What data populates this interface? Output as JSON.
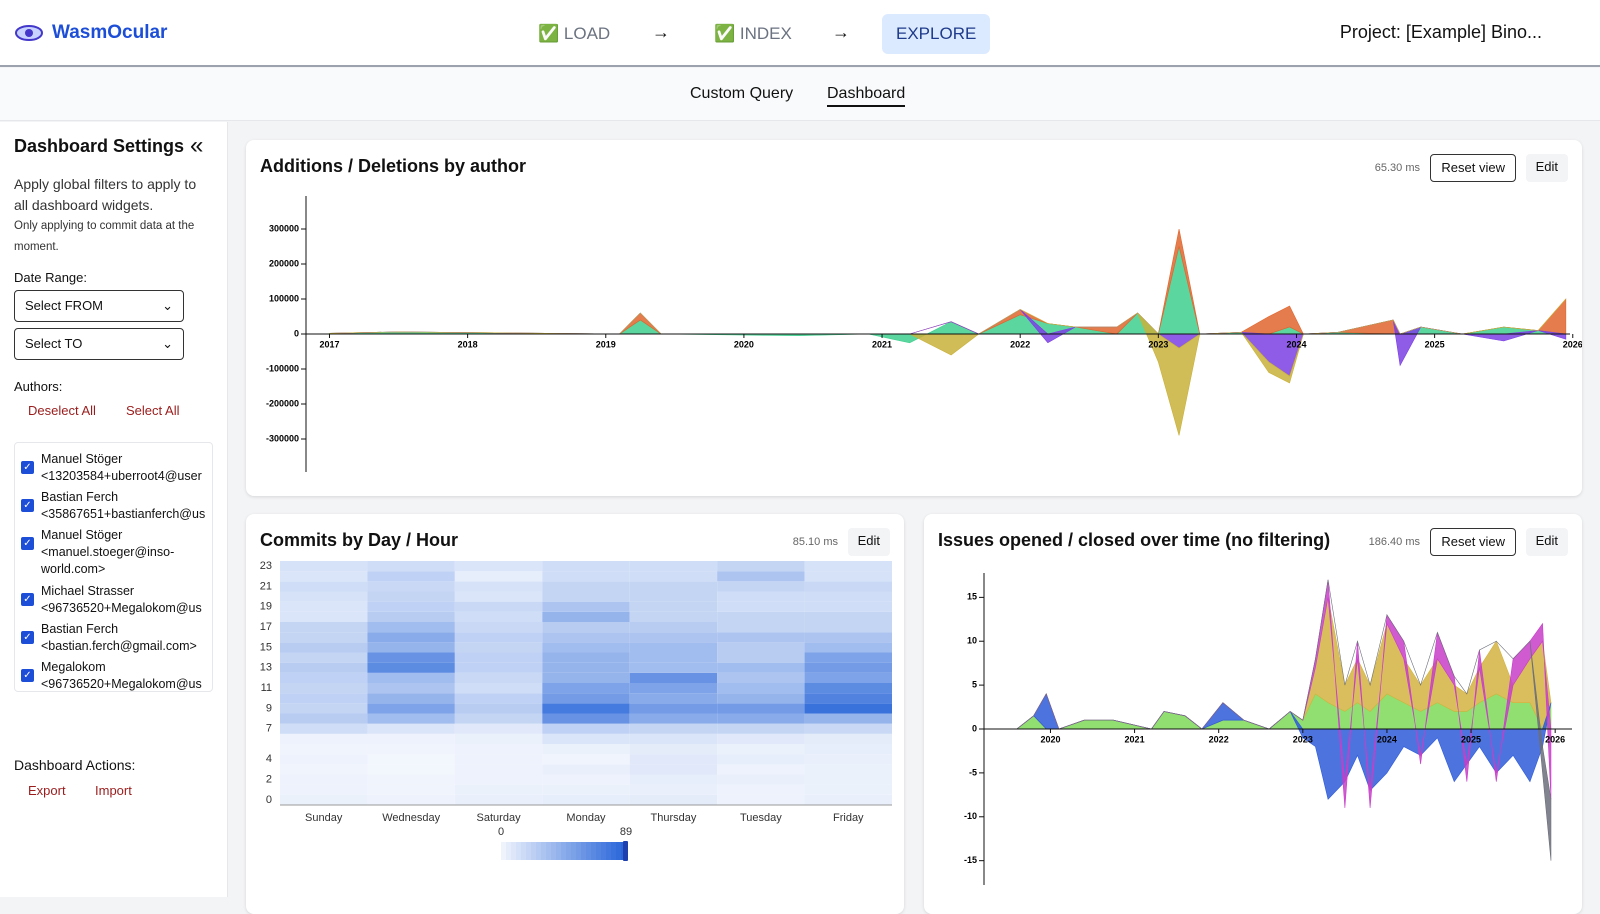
{
  "header": {
    "brand": "WasmOcular",
    "steps": [
      "✅ LOAD",
      "✅ INDEX",
      "EXPLORE"
    ],
    "project": "Project: [Example] Bino..."
  },
  "tabs": [
    "Custom Query",
    "Dashboard"
  ],
  "sidebar": {
    "title": "Dashboard Settings",
    "description": "Apply global filters to apply to all dashboard widgets.",
    "note": "Only applying to commit data at the moment.",
    "date_range_label": "Date Range:",
    "from": "Select FROM",
    "to": "Select TO",
    "authors_label": "Authors:",
    "deselect_all": "Deselect All",
    "select_all": "Select All",
    "authors": [
      {
        "name": "Manuel Stöger",
        "email": "<13203584+uberroot4@user"
      },
      {
        "name": "Bastian Ferch",
        "email": "<35867651+bastianferch@us"
      },
      {
        "name": "Manuel Stöger",
        "email": "<manuel.stoeger@inso-world.com>"
      },
      {
        "name": "Michael Strasser",
        "email": "<96736520+Megalokom@us"
      },
      {
        "name": "Bastian Ferch",
        "email": "<bastian.ferch@gmail.com>"
      },
      {
        "name": "Megalokom",
        "email": "<96736520+Megalokom@us"
      }
    ],
    "actions_label": "Dashboard Actions:",
    "export": "Export",
    "import": "Import"
  },
  "widgets": [
    {
      "timing": "65.30 ms",
      "buttons": [
        "Reset view",
        "Edit"
      ]
    },
    {
      "timing": "85.10 ms",
      "buttons": [
        "Edit"
      ]
    },
    {
      "timing": "186.40 ms",
      "buttons": [
        "Reset view",
        "Edit"
      ]
    }
  ],
  "chart_data": [
    {
      "type": "stream",
      "title": "Additions / Deletions by author",
      "x": [
        2017,
        2017.5,
        2019.1,
        2019.25,
        2019.4,
        2020.4,
        2020.9,
        2021.2,
        2021.5,
        2021.7,
        2022.0,
        2022.2,
        2022.4,
        2022.7,
        2022.85,
        2023.0,
        2023.15,
        2023.3,
        2023.6,
        2023.8,
        2023.95,
        2024.05,
        2024.3,
        2024.7,
        2024.75,
        2024.9,
        2025.2,
        2025.5,
        2025.75,
        2025.95
      ],
      "series": [
        {
          "color": "#3ecf8e",
          "values": [
            2000,
            6000,
            0,
            40000,
            0,
            -5000,
            0,
            -25000,
            35000,
            0,
            55000,
            30000,
            20000,
            0,
            60000,
            0,
            250000,
            0,
            5000,
            0,
            20000,
            0,
            5000,
            0,
            0,
            20000,
            0,
            20000,
            10000,
            0
          ]
        },
        {
          "color": "#e0652e",
          "values": [
            0,
            0,
            0,
            20000,
            0,
            0,
            0,
            0,
            0,
            0,
            15000,
            0,
            0,
            20000,
            0,
            0,
            50000,
            0,
            0,
            50000,
            60000,
            0,
            0,
            40000,
            0,
            0,
            0,
            0,
            0,
            100000
          ]
        },
        {
          "color": "#7b3fe4",
          "values": [
            0,
            0,
            0,
            0,
            0,
            0,
            0,
            0,
            0,
            0,
            0,
            -25000,
            0,
            0,
            0,
            0,
            -40000,
            0,
            0,
            -80000,
            -120000,
            0,
            0,
            0,
            -90000,
            0,
            0,
            -20000,
            0,
            -15000
          ]
        },
        {
          "color": "#c9b13a",
          "values": [
            0,
            0,
            0,
            0,
            0,
            0,
            0,
            0,
            -60000,
            0,
            0,
            0,
            0,
            0,
            0,
            -80000,
            -250000,
            0,
            0,
            -30000,
            -20000,
            0,
            0,
            0,
            0,
            0,
            0,
            0,
            0,
            0
          ]
        }
      ],
      "xlim": [
        2016.83,
        2025.98
      ],
      "xticks": [
        2017,
        2018,
        2019,
        2020,
        2021,
        2022,
        2023,
        2024,
        2025,
        2026
      ],
      "ylim": [
        -400000,
        400000
      ],
      "yticks": [
        300000,
        200000,
        100000,
        0,
        -100000,
        -200000,
        -300000
      ]
    },
    {
      "type": "heatmap",
      "title": "Commits by Day / Hour",
      "categories": [
        "Sunday",
        "Wednesday",
        "Saturday",
        "Monday",
        "Thursday",
        "Tuesday",
        "Friday"
      ],
      "values": [
        [
          3,
          2,
          4,
          5,
          6,
          2,
          4
        ],
        [
          2,
          1,
          3,
          3,
          4,
          2,
          3
        ],
        [
          2,
          1,
          2,
          2,
          5,
          4,
          3
        ],
        [
          1,
          0,
          2,
          4,
          8,
          2,
          3
        ],
        [
          2,
          0,
          2,
          1,
          8,
          5,
          4
        ],
        [
          1,
          1,
          2,
          3,
          6,
          3,
          5
        ],
        [
          2,
          2,
          3,
          10,
          10,
          8,
          6
        ],
        [
          15,
          10,
          8,
          22,
          20,
          20,
          18
        ],
        [
          25,
          35,
          20,
          60,
          45,
          45,
          40
        ],
        [
          20,
          50,
          25,
          75,
          55,
          55,
          80
        ],
        [
          22,
          40,
          22,
          55,
          45,
          40,
          70
        ],
        [
          20,
          30,
          15,
          50,
          50,
          35,
          65
        ],
        [
          22,
          35,
          18,
          40,
          60,
          30,
          50
        ],
        [
          25,
          65,
          22,
          40,
          35,
          35,
          55
        ],
        [
          20,
          60,
          22,
          40,
          35,
          25,
          50
        ],
        [
          25,
          40,
          20,
          35,
          35,
          25,
          35
        ],
        [
          20,
          45,
          22,
          30,
          30,
          30,
          30
        ],
        [
          20,
          35,
          18,
          25,
          25,
          20,
          20
        ],
        [
          10,
          25,
          15,
          40,
          20,
          20,
          20
        ],
        [
          10,
          22,
          18,
          30,
          20,
          15,
          15
        ],
        [
          12,
          20,
          10,
          20,
          20,
          15,
          15
        ],
        [
          15,
          18,
          12,
          20,
          20,
          20,
          18
        ],
        [
          10,
          22,
          5,
          15,
          15,
          30,
          12
        ],
        [
          12,
          15,
          10,
          15,
          15,
          20,
          12
        ]
      ],
      "ylim": [
        0,
        24
      ],
      "yticks": [
        0,
        2,
        4,
        7,
        9,
        11,
        13,
        15,
        17,
        19,
        21,
        23
      ],
      "clim": [
        0,
        89
      ],
      "cticks": [
        0,
        89
      ],
      "color": "#2563d8"
    },
    {
      "type": "stream",
      "title": "Issues opened / closed over time (no filtering)",
      "x": [
        2019.6,
        2019.8,
        2019.95,
        2020.1,
        2020.4,
        2020.75,
        2021.2,
        2021.35,
        2021.6,
        2021.8,
        2022.05,
        2022.3,
        2022.6,
        2022.85,
        2023.0,
        2023.15,
        2023.3,
        2023.5,
        2023.65,
        2023.8,
        2024.0,
        2024.2,
        2024.4,
        2024.6,
        2024.8,
        2024.95,
        2025.1,
        2025.3,
        2025.5,
        2025.7,
        2025.85,
        2025.95
      ],
      "series": [
        {
          "color": "#7ed957",
          "values": [
            0,
            1.5,
            0,
            0,
            1,
            1,
            0,
            2,
            1.5,
            0,
            1,
            1,
            0,
            2,
            1,
            4,
            3,
            2,
            3,
            2,
            4,
            3,
            2,
            3,
            2,
            2,
            3,
            4,
            3,
            3,
            0,
            3
          ]
        },
        {
          "color": "#d4b341",
          "values": [
            0,
            0,
            0,
            0,
            0,
            0,
            0,
            0,
            0,
            0,
            0,
            0,
            0,
            0,
            0,
            3,
            12,
            3,
            5,
            3,
            8,
            5,
            3,
            5,
            3,
            2,
            4,
            6,
            2,
            5,
            10,
            0
          ]
        },
        {
          "color": "#2e5bd8",
          "values": [
            0,
            0,
            4,
            0,
            0,
            0,
            0,
            0,
            0,
            0,
            2,
            0,
            0,
            0,
            -1,
            -2,
            -8,
            -6,
            -3,
            -7,
            -5,
            -2,
            -3,
            -1,
            -6,
            -4,
            -2,
            -5,
            -3,
            -6,
            -2,
            0
          ]
        },
        {
          "color": "#c83ec9",
          "values": [
            0,
            0,
            0,
            0,
            0,
            0,
            0,
            0,
            0,
            0,
            0,
            0,
            0,
            0,
            0,
            1,
            2,
            -3,
            2,
            -2,
            1,
            2,
            -1,
            3,
            1,
            -2,
            2,
            -1,
            3,
            2,
            2,
            -8
          ]
        },
        {
          "color": "#6b6f7a",
          "values": [
            0,
            0,
            0,
            0,
            0,
            0,
            0,
            0,
            0,
            0,
            0,
            0,
            0,
            0,
            0,
            0,
            0,
            0,
            0,
            0,
            0,
            0,
            0,
            0,
            0,
            0,
            0,
            0,
            0,
            0,
            -3,
            -7
          ]
        }
      ],
      "xlim": [
        2019.21,
        2026.2
      ],
      "xticks": [
        2020,
        2021,
        2022,
        2023,
        2024,
        2025,
        2026
      ],
      "ylim": [
        -18,
        18
      ],
      "yticks": [
        15,
        10,
        5,
        0,
        -5,
        -10,
        -15
      ]
    }
  ]
}
